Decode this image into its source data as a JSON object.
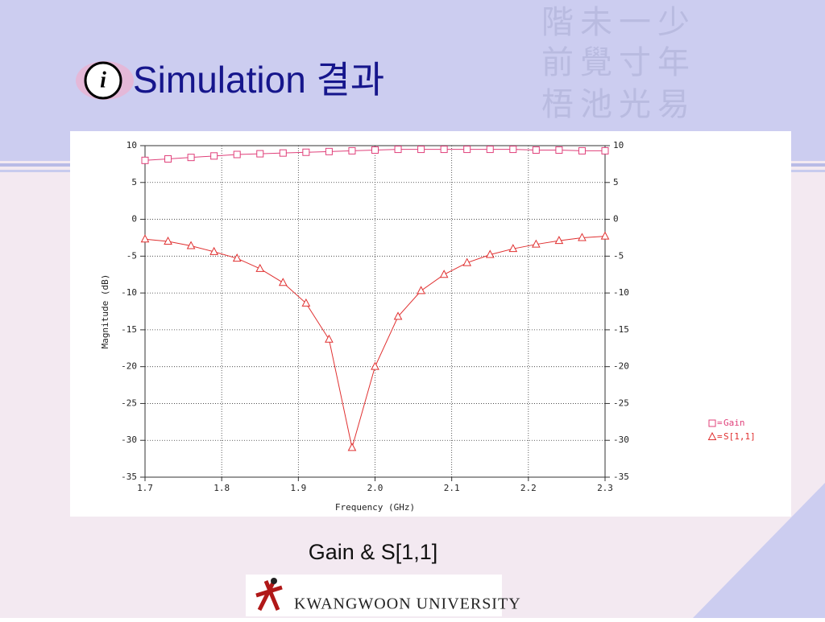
{
  "slide_title": "Simulation 결과",
  "watermark": [
    "階未一少",
    "前覺寸年",
    "梧池光易"
  ],
  "caption": "Gain & S[1,1]",
  "logo": "KWANGWOON UNIVERSITY",
  "chart_data": {
    "type": "line",
    "x_label": "Frequency (GHz)",
    "y_label": "Magnitude (dB)",
    "x": [
      1.7,
      1.73,
      1.76,
      1.79,
      1.82,
      1.85,
      1.88,
      1.91,
      1.94,
      1.97,
      2.0,
      2.03,
      2.06,
      2.09,
      2.12,
      2.15,
      2.18,
      2.21,
      2.24,
      2.27,
      2.3
    ],
    "series": [
      {
        "name": "Gain",
        "color": "#e0407a",
        "marker": "square",
        "values": [
          8.0,
          8.2,
          8.4,
          8.6,
          8.8,
          8.9,
          9.0,
          9.1,
          9.2,
          9.3,
          9.4,
          9.5,
          9.5,
          9.5,
          9.5,
          9.5,
          9.5,
          9.4,
          9.4,
          9.3,
          9.3
        ]
      },
      {
        "name": "S[1,1]",
        "color": "#e03030",
        "marker": "triangle",
        "values": [
          -2.7,
          -3.0,
          -3.6,
          -4.4,
          -5.3,
          -6.7,
          -8.6,
          -11.4,
          -16.3,
          -31.0,
          -20.0,
          -13.2,
          -9.7,
          -7.5,
          -5.9,
          -4.8,
          -4.0,
          -3.4,
          -2.9,
          -2.5,
          -2.3
        ]
      }
    ],
    "legend_separator": "=",
    "xlim": [
      1.7,
      2.3
    ],
    "xticks": [
      1.7,
      1.8,
      1.9,
      {
        "value": 2.0,
        "label": "2.0"
      },
      2.1,
      2.2,
      2.3
    ],
    "ylim": [
      -35,
      10
    ],
    "yticks": [
      10,
      5,
      0,
      -5,
      -10,
      -15,
      -20,
      -25,
      -30,
      -35
    ],
    "grid": true
  }
}
